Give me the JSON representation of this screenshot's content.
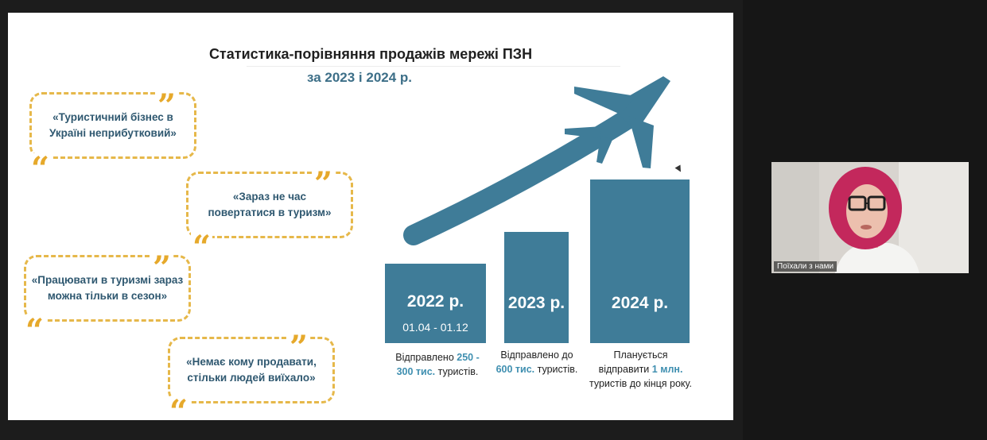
{
  "slide": {
    "title": "Статистика-порівняння продажів мережі ПЗН",
    "subtitle": "за 2023 і 2024 р."
  },
  "quotes": [
    {
      "text": "«Туристичний бізнес в\nУкраїні неприбутковий»"
    },
    {
      "text": "«Зараз не час\nповертатися в туризм»"
    },
    {
      "text": "«Працювати в туризмі зараз\nможна тільки в сезон»"
    },
    {
      "text": "«Немає кому продавати,\nстільки людей виїхало»"
    }
  ],
  "bars": [
    {
      "year": "2022 р.",
      "range": "01.04 - 01.12"
    },
    {
      "year": "2023 р."
    },
    {
      "year": "2024 р."
    }
  ],
  "captions": [
    {
      "l1": "Відправлено",
      "h1": "250 -",
      "h2": "300 тис.",
      "l2": "туристів."
    },
    {
      "l1": "Відправлено до",
      "h1": "600 тис.",
      "l2": "туристів."
    },
    {
      "l1": "Планується",
      "l2a": "відправити",
      "h1": "1 млн.",
      "l3": "туристів до кінця року."
    }
  ],
  "participant": {
    "name": "Поїхали з нами"
  },
  "colors": {
    "accent_blue": "#3f7c98",
    "quote_border": "#e6b84a",
    "highlight": "#3f8fb0"
  }
}
